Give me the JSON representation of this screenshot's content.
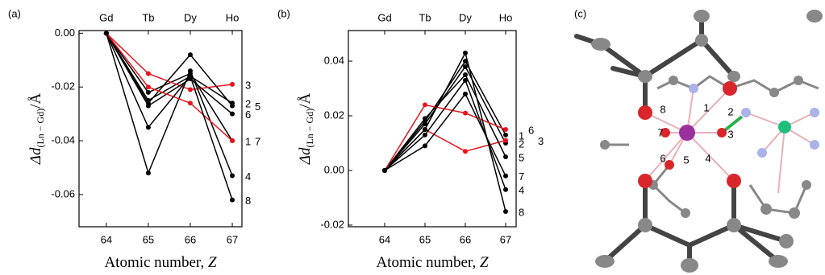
{
  "chart_data": [
    {
      "type": "line",
      "panel_label": "(a)",
      "x": [
        64,
        65,
        66,
        67
      ],
      "x2_labels": [
        "Gd",
        "Tb",
        "Dy",
        "Ho"
      ],
      "xlim": [
        63.35,
        67.23
      ],
      "xticks": [
        64,
        65,
        66,
        67
      ],
      "ylim": [
        -0.072,
        0.001
      ],
      "yticks": [
        {
          "value": 0,
          "label": "0.00"
        },
        {
          "value": -0.02,
          "label": "-0.02"
        },
        {
          "value": -0.04,
          "label": "-0.04"
        },
        {
          "value": -0.06,
          "label": "-0.06"
        }
      ],
      "xlabel": "Atomic number, ",
      "xlabel_var": "Z",
      "ylabel": "Δd",
      "ylabel_sub": "(Ln − Gd)",
      "ylabel_unit": "/Å",
      "series": [
        {
          "name": "1",
          "color": "#000000",
          "values": [
            0,
            -0.022,
            -0.015,
            -0.04
          ]
        },
        {
          "name": "2",
          "color": "#000000",
          "values": [
            0,
            -0.025,
            -0.016,
            -0.026
          ]
        },
        {
          "name": "3",
          "color": "#e8141c",
          "values": [
            0,
            -0.015,
            -0.021,
            -0.019
          ]
        },
        {
          "name": "4",
          "color": "#000000",
          "values": [
            0,
            -0.052,
            -0.014,
            -0.053
          ]
        },
        {
          "name": "5",
          "color": "#000000",
          "values": [
            0,
            -0.026,
            -0.008,
            -0.027
          ]
        },
        {
          "name": "6",
          "color": "#000000",
          "values": [
            0,
            -0.027,
            -0.017,
            -0.03
          ]
        },
        {
          "name": "7",
          "color": "#e8141c",
          "values": [
            0,
            -0.02,
            -0.026,
            -0.04
          ]
        },
        {
          "name": "8",
          "color": "#000000",
          "values": [
            0,
            -0.035,
            -0.016,
            -0.062
          ]
        }
      ]
    },
    {
      "type": "line",
      "panel_label": "(b)",
      "x": [
        64,
        65,
        66,
        67
      ],
      "x2_labels": [
        "Gd",
        "Tb",
        "Dy",
        "Ho"
      ],
      "xlim": [
        63.1,
        67.26
      ],
      "xticks": [
        64,
        65,
        66,
        67
      ],
      "ylim": [
        -0.0206,
        0.0512
      ],
      "yticks": [
        {
          "value": -0.02,
          "label": "-0.02"
        },
        {
          "value": 0,
          "label": "0.00"
        },
        {
          "value": 0.02,
          "label": "0.02"
        },
        {
          "value": 0.04,
          "label": "0.04"
        }
      ],
      "xlabel": "Atomic number, ",
      "xlabel_var": "Z",
      "ylabel": "Δd",
      "ylabel_sub": "(Ln − Gd)",
      "ylabel_unit": "/Å",
      "series": [
        {
          "name": "1",
          "color": "#000000",
          "values": [
            0,
            0.018,
            0.04,
            0.013
          ]
        },
        {
          "name": "2",
          "color": "#000000",
          "values": [
            0,
            0.017,
            0.038,
            0.01
          ]
        },
        {
          "name": "3",
          "color": "#e8141c",
          "values": [
            0,
            0.015,
            0.007,
            0.011
          ]
        },
        {
          "name": "4",
          "color": "#000000",
          "values": [
            0,
            0.013,
            0.033,
            -0.007
          ]
        },
        {
          "name": "5",
          "color": "#000000",
          "values": [
            0,
            0.019,
            0.035,
            0.005
          ]
        },
        {
          "name": "6",
          "color": "#e8141c",
          "values": [
            0,
            0.024,
            0.021,
            0.015
          ]
        },
        {
          "name": "7",
          "color": "#000000",
          "values": [
            0,
            0.009,
            0.028,
            -0.002
          ]
        },
        {
          "name": "8",
          "color": "#000000",
          "values": [
            0,
            0.015,
            0.043,
            -0.015
          ]
        }
      ]
    }
  ],
  "molecule": {
    "panel_label": "(c)",
    "site_labels": [
      "1",
      "2",
      "3",
      "4",
      "5",
      "6",
      "7",
      "8"
    ]
  }
}
